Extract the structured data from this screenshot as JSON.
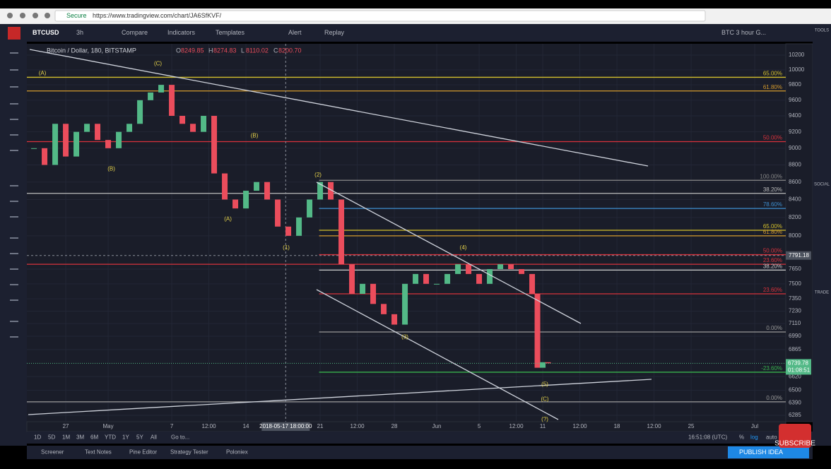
{
  "browser": {
    "security": "Secure",
    "url": "https://www.tradingview.com/chart/JA6SfKVF/"
  },
  "toolbar": {
    "symbol": "BTCUSD",
    "interval": "3h",
    "items": [
      "Compare",
      "Indicators",
      "Templates",
      "Alert",
      "Replay"
    ],
    "layout": "BTC 3 hour G..."
  },
  "legend": {
    "title": "Bitcoin / Dollar, 180, BITSTAMP",
    "ohlc": [
      {
        "key": "O",
        "value": "8249.85"
      },
      {
        "key": "H",
        "value": "8274.83"
      },
      {
        "key": "L",
        "value": "8110.02"
      },
      {
        "key": "C",
        "value": "8200.70"
      }
    ]
  },
  "chart_data": {
    "type": "candlestick",
    "up_color": "#53b987",
    "down_color": "#eb4d5c",
    "log_scale": true,
    "grid": true,
    "x": [
      -3,
      -2,
      -1,
      0,
      1,
      2,
      3,
      4,
      5,
      6,
      7,
      8,
      9,
      10,
      11,
      12,
      13,
      14,
      15,
      16,
      17,
      18,
      19,
      20,
      21,
      22,
      23,
      24,
      25,
      26,
      27,
      28,
      29,
      30,
      31,
      32,
      33,
      34,
      35,
      36,
      37,
      38,
      39,
      40,
      41,
      42,
      43,
      44,
      44.5,
      45,
      45.5
    ],
    "values": [
      9000,
      8800,
      9300,
      8900,
      9200,
      9300,
      9100,
      9000,
      9200,
      9300,
      9600,
      9700,
      9800,
      9400,
      9300,
      9200,
      9400,
      8700,
      8400,
      8300,
      8500,
      8600,
      8400,
      8100,
      8000,
      8200,
      8400,
      8600,
      8400,
      7700,
      7400,
      7500,
      7300,
      7200,
      7100,
      7500,
      7600,
      7500,
      7500,
      7600,
      7700,
      7600,
      7500,
      7650,
      7700,
      7650,
      7600,
      7400,
      6700,
      6750,
      6740
    ],
    "xlim": [
      -3.67,
      67.93
    ],
    "xticks": [
      {
        "value": 0,
        "label": "27"
      },
      {
        "value": 4,
        "label": "May"
      },
      {
        "value": 10,
        "label": "7"
      },
      {
        "value": 13.5,
        "label": "12:00"
      },
      {
        "value": 17,
        "label": "14"
      },
      {
        "value": 24,
        "label": "21"
      },
      {
        "value": 27.5,
        "label": "12:00"
      },
      {
        "value": 31,
        "label": "28"
      },
      {
        "value": 35,
        "label": "Jun"
      },
      {
        "value": 39,
        "label": "5"
      },
      {
        "value": 42.5,
        "label": "12:00"
      },
      {
        "value": 45,
        "label": "11"
      },
      {
        "value": 48.5,
        "label": "12:00"
      },
      {
        "value": 52,
        "label": "18"
      },
      {
        "value": 55.5,
        "label": "12:00"
      },
      {
        "value": 59,
        "label": "25"
      },
      {
        "value": 65,
        "label": "Jul"
      }
    ],
    "ylim": [
      6285,
      10200
    ],
    "yticks": [
      10200,
      10000,
      9800,
      9600,
      9400,
      9200,
      9000,
      8800,
      8600,
      8400,
      8200,
      8000,
      7650,
      7500,
      7350,
      7230,
      7110,
      6990,
      6865,
      6620,
      6500,
      6390,
      6285
    ],
    "levels": [
      {
        "price": 9900,
        "label": "65.00%",
        "color": "#d4c02c"
      },
      {
        "price": 9720,
        "label": "61.80%",
        "color": "#d49a2c"
      },
      {
        "price": 9080,
        "label": "50.00%",
        "color": "#d8323c"
      },
      {
        "price": 8620,
        "label": "100.00%",
        "color": "#8a8a8a",
        "from": 23.9
      },
      {
        "price": 8470,
        "label": "38.20%",
        "color": "#bbbbbb"
      },
      {
        "price": 8300,
        "label": "78.60%",
        "color": "#3d8fd1",
        "from": 23.9
      },
      {
        "price": 8060,
        "label": "65.00%",
        "color": "#d4c02c",
        "from": 23.9
      },
      {
        "price": 8000,
        "label": "61.80%",
        "color": "#d49a2c",
        "from": 23.9
      },
      {
        "price": 7800,
        "label": "50.00%",
        "color": "#d8323c",
        "from": 23.9
      },
      {
        "price": 7700,
        "label": "23.60%",
        "color": "#d8323c"
      },
      {
        "price": 7640,
        "label": "38.20%",
        "color": "#cccccc",
        "from": 23.9
      },
      {
        "price": 7400,
        "label": "23.60%",
        "color": "#d8323c",
        "from": 23.9
      },
      {
        "price": 7030,
        "label": "0.00%",
        "color": "#999999",
        "from": 23.9
      },
      {
        "price": 6660,
        "label": "-23.60%",
        "color": "#37b24d",
        "from": 23.9
      },
      {
        "price": 6400,
        "label": "0.00%",
        "color": "#999999"
      }
    ],
    "waves": [
      {
        "label": "(A)",
        "x": -2.2,
        "price": 9950
      },
      {
        "label": "(C)",
        "x": 8.7,
        "price": 10080
      },
      {
        "label": "(B)",
        "x": 17.8,
        "price": 9150
      },
      {
        "label": "(B)",
        "x": 4.3,
        "price": 8750
      },
      {
        "label": "(A)",
        "x": 15.3,
        "price": 8180
      },
      {
        "label": "(1)",
        "x": 20.8,
        "price": 7870
      },
      {
        "label": "(2)",
        "x": 23.8,
        "price": 8680
      },
      {
        "label": "(3)",
        "x": 32,
        "price": 6980
      },
      {
        "label": "(4)",
        "x": 37.5,
        "price": 7870
      },
      {
        "label": "(5)",
        "x": 45.2,
        "price": 6550
      },
      {
        "label": "(C)",
        "x": 45.2,
        "price": 6420
      },
      {
        "label": "(?)",
        "x": 45.2,
        "price": 6250
      }
    ],
    "crosshair": {
      "x": {
        "value": 20.75,
        "label": "2018-05-17 18:00:00"
      },
      "price": 7791.18
    },
    "last_price": 6739.78,
    "countdown": "01:08:51"
  },
  "bottom": {
    "ranges": [
      "1D",
      "5D",
      "1M",
      "3M",
      "6M",
      "YTD",
      "1Y",
      "5Y",
      "All"
    ],
    "goto": "Go to...",
    "clock": "16:51:08 (UTC)",
    "options": [
      "%",
      "log",
      "auto"
    ]
  },
  "tabs": [
    "Screener",
    "Text Notes",
    "Pine Editor",
    "Strategy Tester",
    "Poloniex"
  ],
  "publish": "PUBLISH IDEA",
  "sidebar": [
    "TOOLS",
    "SOCIAL",
    "TRADE"
  ],
  "overlay": "SUBSCRIBE"
}
